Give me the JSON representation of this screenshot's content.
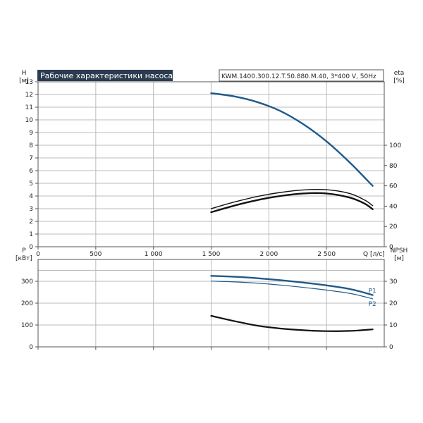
{
  "header": {
    "title": "Рабочие характеристики насоса",
    "model": "KWM.1400.300.12.T.50.880.M.40, 3*400 V, 50Hz"
  },
  "colors": {
    "title_bg": "#2b3c50",
    "blue": "#1f5a8a",
    "black": "#111111",
    "grid": "#bbbbbb",
    "frame": "#555555"
  },
  "chart_data": [
    {
      "type": "line",
      "name": "head-efficiency",
      "xlabel": "Q [л/с]",
      "ylabel_left": "H\n[м]",
      "ylabel_right": "eta\n[%]",
      "xlim": [
        0,
        3000
      ],
      "xticks": [
        0,
        500,
        1000,
        1500,
        2000,
        2500
      ],
      "xtick_labels": [
        "0",
        "500",
        "1 000",
        "1 500",
        "2 000",
        "2 500"
      ],
      "ylim_left": [
        0,
        13
      ],
      "yticks_left": [
        0,
        1,
        2,
        3,
        4,
        5,
        6,
        7,
        8,
        9,
        10,
        11,
        12,
        13
      ],
      "ylim_right": [
        0,
        162.5
      ],
      "yticks_right": [
        0,
        20,
        40,
        60,
        80,
        100
      ],
      "grid": true,
      "series": [
        {
          "axis": "left",
          "color": "blue",
          "width": 2.4,
          "x": [
            1500,
            1700,
            1900,
            2100,
            2300,
            2500,
            2700,
            2900
          ],
          "y": [
            12.1,
            11.85,
            11.4,
            10.7,
            9.65,
            8.3,
            6.65,
            4.8
          ]
        },
        {
          "axis": "right",
          "color": "black",
          "width": 1.4,
          "x": [
            1500,
            1700,
            1900,
            2100,
            2300,
            2500,
            2700,
            2830,
            2900
          ],
          "y": [
            37.5,
            44,
            49.5,
            53.5,
            56,
            56.2,
            52.5,
            46,
            40.5
          ]
        },
        {
          "axis": "right",
          "color": "black",
          "width": 2.4,
          "x": [
            1500,
            1700,
            1900,
            2100,
            2300,
            2500,
            2700,
            2830,
            2900
          ],
          "y": [
            34,
            40.5,
            46,
            50,
            52.5,
            52.5,
            48.5,
            42.5,
            37
          ]
        }
      ]
    },
    {
      "type": "line",
      "name": "power-npsh",
      "ylabel_left": "P\n[кВт]",
      "ylabel_right": "NPSH\n[м]",
      "xlim": [
        0,
        3000
      ],
      "ylim_left": [
        0,
        400
      ],
      "yticks_left": [
        0,
        100,
        200,
        300
      ],
      "ylim_right": [
        0,
        40
      ],
      "yticks_right": [
        0,
        10,
        20,
        30
      ],
      "grid": true,
      "series": [
        {
          "name": "P1",
          "axis": "left",
          "color": "blue",
          "width": 2.4,
          "x": [
            1500,
            1800,
            2100,
            2400,
            2700,
            2900
          ],
          "y": [
            325,
            318,
            305,
            288,
            265,
            237
          ]
        },
        {
          "name": "P2",
          "axis": "left",
          "color": "blue",
          "width": 1.2,
          "x": [
            1500,
            1800,
            2100,
            2400,
            2700,
            2900
          ],
          "y": [
            301,
            295,
            283,
            266,
            245,
            220
          ]
        },
        {
          "axis": "right",
          "color": "black",
          "width": 2.2,
          "x": [
            1500,
            1700,
            1900,
            2100,
            2300,
            2500,
            2700,
            2900
          ],
          "y": [
            14.2,
            11.8,
            9.7,
            8.4,
            7.6,
            7.2,
            7.3,
            8.0
          ]
        }
      ]
    }
  ]
}
